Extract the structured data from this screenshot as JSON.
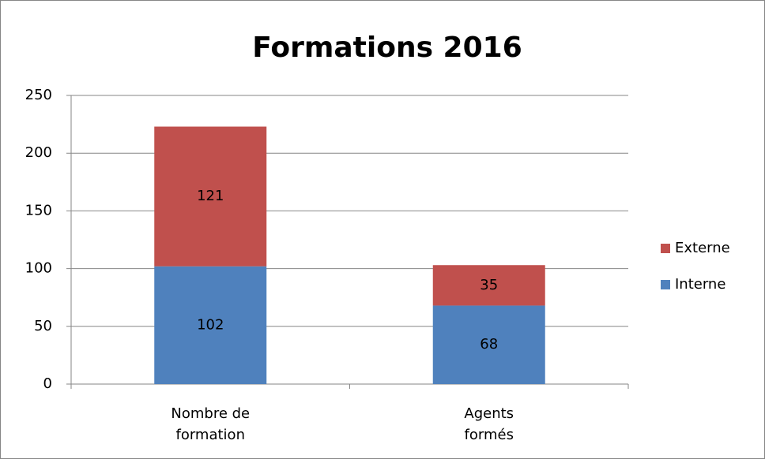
{
  "chart_data": {
    "type": "bar",
    "stacked": true,
    "title": "Formations 2016",
    "categories": [
      "Nombre de formation",
      "Agents formés"
    ],
    "series": [
      {
        "name": "Interne",
        "color": "#4f81bd",
        "values": [
          102,
          68
        ]
      },
      {
        "name": "Externe",
        "color": "#c0504d",
        "values": [
          121,
          35
        ]
      }
    ],
    "ylim": [
      0,
      250
    ],
    "yticks": [
      0,
      50,
      100,
      150,
      200,
      250
    ],
    "grid": true,
    "legend": "right"
  }
}
